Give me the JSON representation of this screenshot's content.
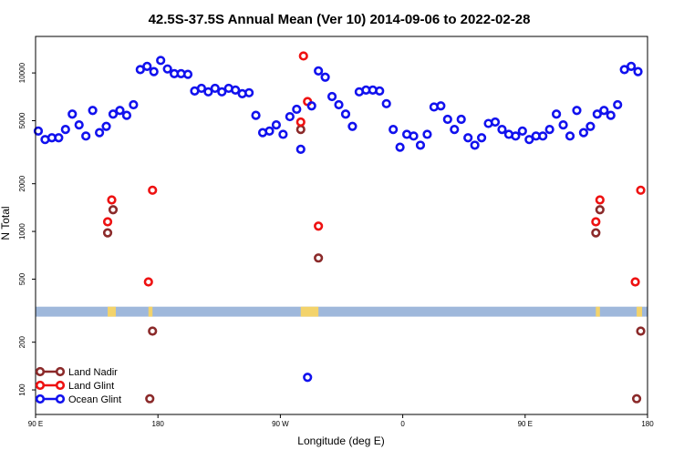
{
  "chart_data": {
    "type": "scatter",
    "title": "42.5S-37.5S Annual Mean (Ver 10)   2014-09-06 to 2022-02-28",
    "xlabel": "Longitude (deg E)",
    "ylabel": "N Total",
    "y_scale": "log",
    "ylim": [
      70,
      17000
    ],
    "x_axis_positions": [
      90,
      450
    ],
    "x_ticks": [
      {
        "pos": 90,
        "label": "90 E"
      },
      {
        "pos": 180,
        "label": "180"
      },
      {
        "pos": 270,
        "label": "90 W"
      },
      {
        "pos": 360,
        "label": "0"
      },
      {
        "pos": 450,
        "label": "90 E"
      },
      {
        "pos": 540,
        "label": "180"
      }
    ],
    "x_range": [
      90,
      540
    ],
    "y_ticks": [
      {
        "value": 100,
        "label": "100"
      },
      {
        "value": 200,
        "label": "200"
      },
      {
        "value": 500,
        "label": "500"
      },
      {
        "value": 1000,
        "label": "1000"
      },
      {
        "value": 2000,
        "label": "2000"
      },
      {
        "value": 5000,
        "label": "5000"
      },
      {
        "value": 10000,
        "label": "10000"
      }
    ],
    "band": {
      "y_low": 290,
      "y_high": 335,
      "color": "#9fb8db",
      "land_color": "#f3d36b",
      "land_ranges": [
        [
          143,
          149
        ],
        [
          173,
          176
        ],
        [
          285,
          298
        ],
        [
          502,
          505
        ],
        [
          532,
          536
        ]
      ]
    },
    "legend": {
      "position": "bottom-left"
    },
    "series": [
      {
        "name": "Land Nadir",
        "color": "#8b2a2a",
        "points": [
          [
            143,
            980
          ],
          [
            147,
            1370
          ],
          [
            174,
            88
          ],
          [
            176,
            235
          ],
          [
            285,
            4400
          ],
          [
            298,
            680
          ],
          [
            502,
            980
          ],
          [
            505,
            1370
          ],
          [
            532,
            88
          ],
          [
            535,
            235
          ]
        ]
      },
      {
        "name": "Land Glint",
        "color": "#ee1111",
        "points": [
          [
            143,
            1150
          ],
          [
            146,
            1580
          ],
          [
            173,
            480
          ],
          [
            176,
            1820
          ],
          [
            285,
            4900
          ],
          [
            287,
            12800
          ],
          [
            290,
            6600
          ],
          [
            298,
            1080
          ],
          [
            502,
            1150
          ],
          [
            505,
            1580
          ],
          [
            531,
            480
          ],
          [
            535,
            1820
          ]
        ]
      },
      {
        "name": "Ocean Glint",
        "color": "#1111ee",
        "points": [
          [
            92,
            4300
          ],
          [
            97,
            3800
          ],
          [
            102,
            3900
          ],
          [
            107,
            3900
          ],
          [
            112,
            4400
          ],
          [
            117,
            5500
          ],
          [
            122,
            4700
          ],
          [
            127,
            4000
          ],
          [
            132,
            5800
          ],
          [
            137,
            4200
          ],
          [
            142,
            4600
          ],
          [
            147,
            5500
          ],
          [
            152,
            5800
          ],
          [
            157,
            5400
          ],
          [
            162,
            6300
          ],
          [
            167,
            10500
          ],
          [
            172,
            11000
          ],
          [
            177,
            10200
          ],
          [
            182,
            12000
          ],
          [
            187,
            10600
          ],
          [
            192,
            9900
          ],
          [
            197,
            9900
          ],
          [
            202,
            9800
          ],
          [
            207,
            7700
          ],
          [
            212,
            8000
          ],
          [
            217,
            7600
          ],
          [
            222,
            8000
          ],
          [
            227,
            7600
          ],
          [
            232,
            8000
          ],
          [
            237,
            7800
          ],
          [
            242,
            7400
          ],
          [
            247,
            7500
          ],
          [
            252,
            5400
          ],
          [
            257,
            4200
          ],
          [
            262,
            4300
          ],
          [
            267,
            4700
          ],
          [
            272,
            4100
          ],
          [
            277,
            5300
          ],
          [
            282,
            5900
          ],
          [
            285,
            3300
          ],
          [
            290,
            120
          ],
          [
            293,
            6200
          ],
          [
            298,
            10300
          ],
          [
            303,
            9400
          ],
          [
            308,
            7100
          ],
          [
            313,
            6300
          ],
          [
            318,
            5500
          ],
          [
            323,
            4600
          ],
          [
            328,
            7600
          ],
          [
            333,
            7800
          ],
          [
            338,
            7800
          ],
          [
            343,
            7700
          ],
          [
            348,
            6400
          ],
          [
            353,
            4400
          ],
          [
            358,
            3400
          ],
          [
            363,
            4100
          ],
          [
            368,
            4000
          ],
          [
            373,
            3500
          ],
          [
            378,
            4100
          ],
          [
            383,
            6100
          ],
          [
            388,
            6200
          ],
          [
            393,
            5100
          ],
          [
            398,
            4400
          ],
          [
            403,
            5100
          ],
          [
            408,
            3900
          ],
          [
            413,
            3500
          ],
          [
            418,
            3900
          ],
          [
            423,
            4800
          ],
          [
            428,
            4900
          ],
          [
            433,
            4400
          ],
          [
            438,
            4100
          ],
          [
            443,
            4000
          ],
          [
            448,
            4300
          ],
          [
            453,
            3800
          ],
          [
            458,
            4000
          ],
          [
            463,
            4000
          ],
          [
            468,
            4400
          ],
          [
            473,
            5500
          ],
          [
            478,
            4700
          ],
          [
            483,
            4000
          ],
          [
            488,
            5800
          ],
          [
            493,
            4200
          ],
          [
            498,
            4600
          ],
          [
            503,
            5500
          ],
          [
            508,
            5800
          ],
          [
            513,
            5400
          ],
          [
            518,
            6300
          ],
          [
            523,
            10500
          ],
          [
            528,
            11000
          ],
          [
            533,
            10200
          ]
        ]
      }
    ]
  }
}
